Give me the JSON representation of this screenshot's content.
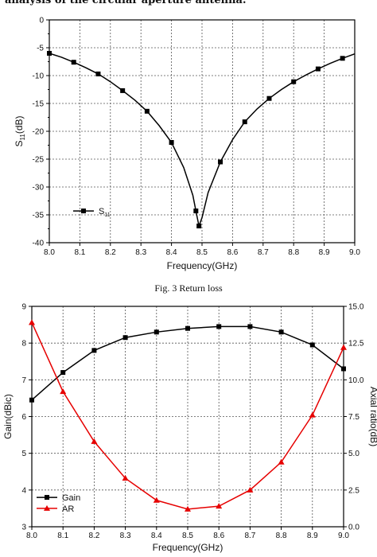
{
  "header_text": "analysis of the circular aperture antenna.",
  "figure_caption": "Fig. 3 Return loss",
  "chart_data": [
    {
      "type": "line",
      "xlabel": "Frequency(GHz)",
      "ylabel": "S11(dB)",
      "xlim": [
        8.0,
        9.0
      ],
      "ylim": [
        -40,
        0
      ],
      "x_ticks": [
        "8.0",
        "8.1",
        "8.2",
        "8.3",
        "8.4",
        "8.5",
        "8.6",
        "8.7",
        "8.8",
        "8.9",
        "9.0"
      ],
      "y_ticks": [
        "0",
        "-5",
        "-10",
        "-15",
        "-20",
        "-25",
        "-30",
        "-35",
        "-40"
      ],
      "grid": true,
      "legend_position": "bottom-left",
      "series": [
        {
          "name": "S11",
          "color": "#000000",
          "marker": "square",
          "x": [
            8.0,
            8.04,
            8.08,
            8.12,
            8.16,
            8.2,
            8.24,
            8.28,
            8.32,
            8.36,
            8.4,
            8.44,
            8.47,
            8.48,
            8.49,
            8.5,
            8.52,
            8.56,
            8.6,
            8.64,
            8.68,
            8.72,
            8.76,
            8.8,
            8.84,
            8.88,
            8.92,
            8.96,
            9.0
          ],
          "y": [
            -6.0,
            -6.7,
            -7.6,
            -8.6,
            -9.7,
            -11.1,
            -12.7,
            -14.4,
            -16.4,
            -19.0,
            -22.0,
            -26.5,
            -31.5,
            -34.3,
            -37.0,
            -35.5,
            -31.0,
            -25.5,
            -21.5,
            -18.3,
            -16.0,
            -14.1,
            -12.5,
            -11.1,
            -9.9,
            -8.8,
            -7.8,
            -6.9,
            -6.1
          ],
          "marker_x": [
            8.0,
            8.08,
            8.16,
            8.24,
            8.32,
            8.4,
            8.48,
            8.49,
            8.56,
            8.64,
            8.72,
            8.8,
            8.88,
            8.96
          ],
          "marker_y": [
            -6.0,
            -7.6,
            -9.7,
            -12.7,
            -16.4,
            -22.0,
            -34.3,
            -37.0,
            -25.5,
            -18.3,
            -14.1,
            -11.1,
            -8.8,
            -6.9
          ]
        }
      ]
    },
    {
      "type": "line",
      "xlabel": "Frequency(GHz)",
      "ylabel": "Gain(dBic)",
      "y2label": "Axial ratio(dB)",
      "xlim": [
        8.0,
        9.0
      ],
      "ylim": [
        3,
        9
      ],
      "y2lim": [
        0,
        15
      ],
      "x_ticks": [
        "8.0",
        "8.1",
        "8.2",
        "8.3",
        "8.4",
        "8.5",
        "8.6",
        "8.7",
        "8.8",
        "8.9",
        "9.0"
      ],
      "y_ticks": [
        "3",
        "4",
        "5",
        "6",
        "7",
        "8",
        "9"
      ],
      "y2_ticks": [
        "0.0",
        "2.5",
        "5.0",
        "7.5",
        "10.0",
        "12.5",
        "15.0"
      ],
      "grid": true,
      "legend_position": "bottom-left",
      "series": [
        {
          "name": "Gain",
          "color": "#000000",
          "marker": "square",
          "axis": "left",
          "x": [
            8.0,
            8.1,
            8.2,
            8.3,
            8.4,
            8.5,
            8.6,
            8.7,
            8.8,
            8.9,
            9.0
          ],
          "y": [
            6.45,
            7.2,
            7.8,
            8.15,
            8.3,
            8.4,
            8.45,
            8.45,
            8.3,
            7.95,
            7.3
          ]
        },
        {
          "name": "AR",
          "color": "#e60000",
          "marker": "triangle",
          "axis": "right",
          "x": [
            8.0,
            8.1,
            8.2,
            8.3,
            8.4,
            8.5,
            8.6,
            8.7,
            8.8,
            8.9,
            9.0
          ],
          "y": [
            13.9,
            9.2,
            5.8,
            3.3,
            1.8,
            1.2,
            1.4,
            2.5,
            4.4,
            7.6,
            12.2
          ]
        }
      ]
    }
  ]
}
